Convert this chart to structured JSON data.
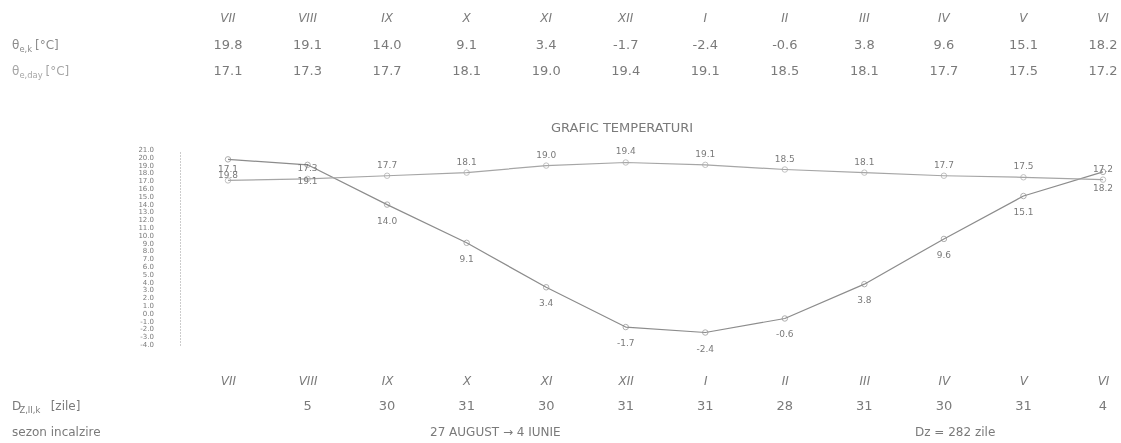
{
  "chart_data": {
    "type": "line",
    "title": "GRAFIC TEMPERATURI",
    "categories": [
      "VII",
      "VIII",
      "IX",
      "X",
      "XI",
      "XII",
      "I",
      "II",
      "III",
      "IV",
      "V",
      "VI"
    ],
    "series": [
      {
        "name": "θ$_{e,k}$ [°C]",
        "color": "#8c8c8c",
        "values": [
          19.8,
          19.1,
          14.0,
          9.1,
          3.4,
          -1.7,
          -2.4,
          -0.6,
          3.8,
          9.6,
          15.1,
          18.2
        ],
        "value_labels": [
          "19.8",
          "19.1",
          "14.0",
          "9.1",
          "3.4",
          "-1.7",
          "-2.4",
          "-0.6",
          "3.8",
          "9.6",
          "15.1",
          "18.2"
        ]
      },
      {
        "name": "θ$_{e,day}$ [°C]",
        "color": "#a6a6a6",
        "values": [
          17.1,
          17.3,
          17.7,
          18.1,
          19.0,
          19.4,
          19.1,
          18.5,
          18.1,
          17.7,
          17.5,
          17.2
        ],
        "value_labels": [
          "17.1",
          "17.3",
          "17.7",
          "18.1",
          "19.0",
          "19.4",
          "19.1",
          "18.5",
          "18.1",
          "17.7",
          "17.5",
          "17.2"
        ]
      }
    ],
    "ylim": [
      -4,
      21
    ],
    "yticks": [
      {
        "value": -4,
        "label": "-4.0"
      },
      {
        "value": -3,
        "label": "-3.0"
      },
      {
        "value": -2,
        "label": "-2.0"
      },
      {
        "value": -1,
        "label": "-1.0"
      },
      {
        "value": 0,
        "label": "0.0"
      },
      {
        "value": 1,
        "label": "1.0"
      },
      {
        "value": 2,
        "label": "2.0"
      },
      {
        "value": 3,
        "label": "3.0"
      },
      {
        "value": 4,
        "label": "4.0"
      },
      {
        "value": 5,
        "label": "5.0"
      },
      {
        "value": 6,
        "label": "6.0"
      },
      {
        "value": 7,
        "label": "7.0"
      },
      {
        "value": 8,
        "label": "8.0"
      },
      {
        "value": 9,
        "label": "9.0"
      },
      {
        "value": 10,
        "label": "10.0"
      },
      {
        "value": 11,
        "label": "11.0"
      },
      {
        "value": 12,
        "label": "12.0"
      },
      {
        "value": 13,
        "label": "13.0"
      },
      {
        "value": 14,
        "label": "14.0"
      },
      {
        "value": 15,
        "label": "15.0"
      },
      {
        "value": 16,
        "label": "16.0"
      },
      {
        "value": 17,
        "label": "17.0"
      },
      {
        "value": 18,
        "label": "18.0"
      },
      {
        "value": 19,
        "label": "19.0"
      },
      {
        "value": 20,
        "label": "20.0"
      },
      {
        "value": 21,
        "label": "21.0"
      }
    ],
    "marker": "circle",
    "line_style": "solid",
    "grid": false,
    "annotations": [
      "D$_{Z,II,k}$ [zile]",
      "5",
      "30",
      "31",
      "30",
      "31",
      "31",
      "28",
      "31",
      "30",
      "31",
      "4",
      "sezon incalzire",
      "27 AUGUST → 4 IUNIE",
      "Dz =   282   zile"
    ]
  }
}
